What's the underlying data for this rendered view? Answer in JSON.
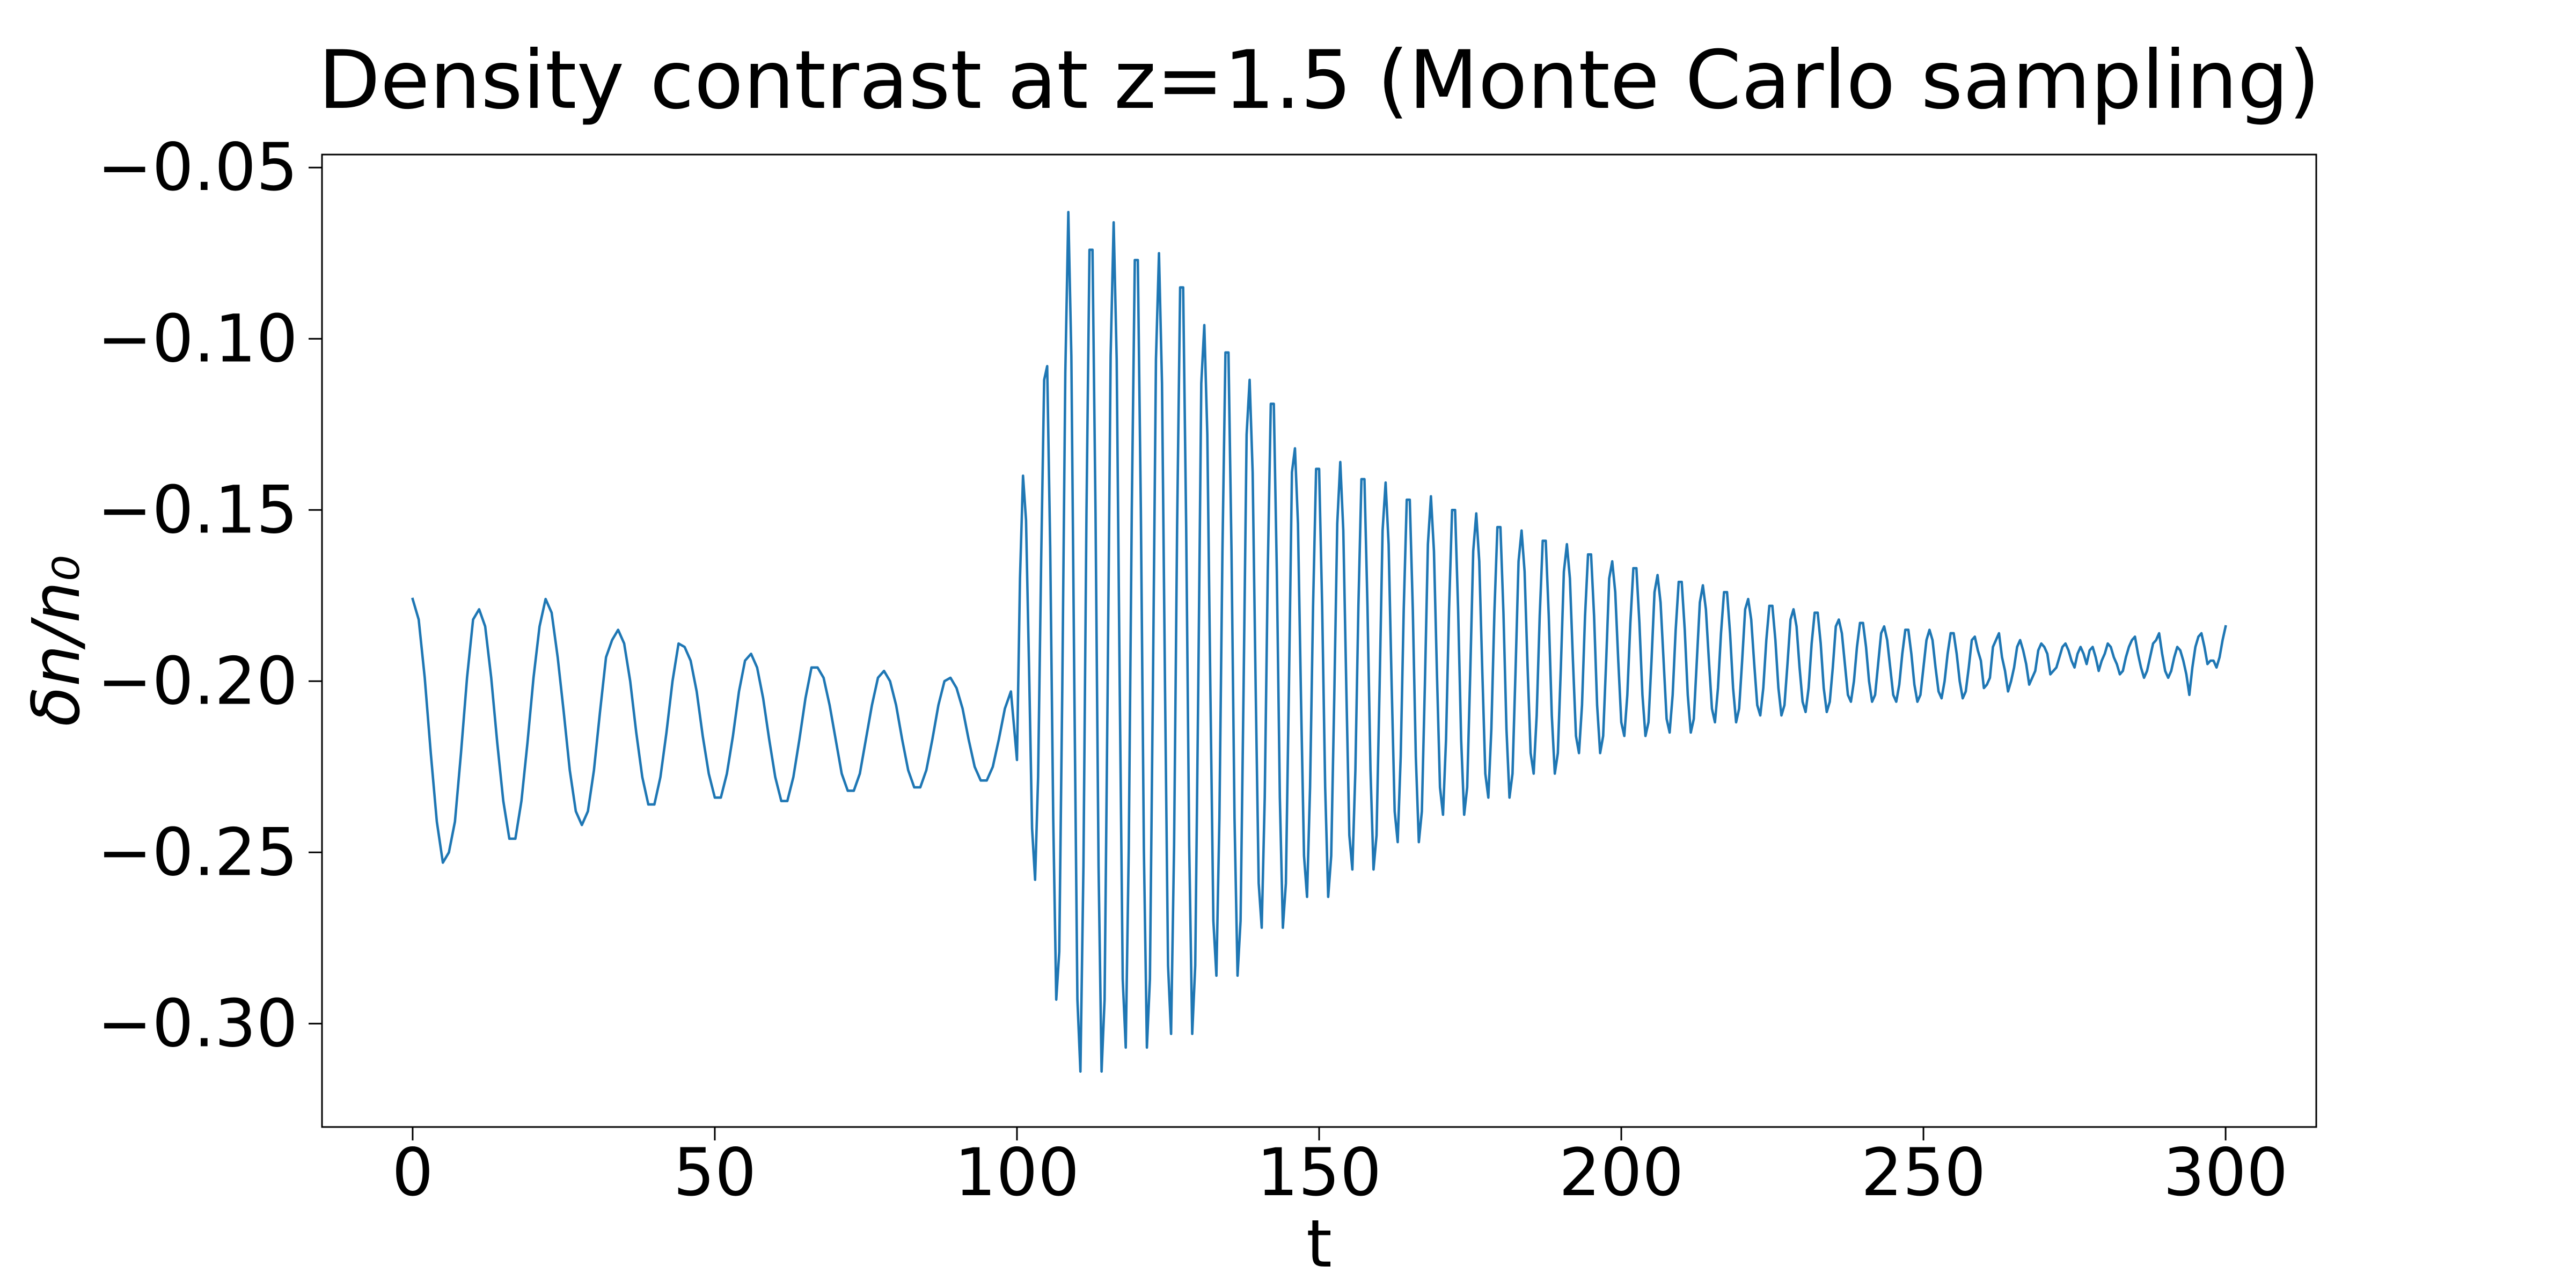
{
  "chart_data": {
    "type": "line",
    "title": "Density contrast at z=1.5 (Monte Carlo sampling)",
    "xlabel": "t",
    "ylabel": "δn/n₀",
    "color": "#1f77b4",
    "xlim": [
      -15,
      315
    ],
    "xticks": [
      0,
      50,
      100,
      150,
      200,
      250,
      300
    ],
    "ylim": [
      -0.3302,
      -0.0462
    ],
    "yticks": [
      {
        "value": -0.3,
        "label": "−0.30"
      },
      {
        "value": -0.25,
        "label": "−0.25"
      },
      {
        "value": -0.2,
        "label": "−0.20"
      },
      {
        "value": -0.15,
        "label": "−0.15"
      },
      {
        "value": -0.1,
        "label": "−0.10"
      },
      {
        "value": -0.05,
        "label": "−0.05"
      }
    ],
    "x": [
      0,
      1,
      2,
      3,
      4,
      5,
      6,
      7,
      8,
      9,
      10,
      11,
      12,
      13,
      14,
      15,
      16,
      17,
      18,
      19,
      20,
      21,
      22,
      23,
      24,
      25,
      26,
      27,
      28,
      29,
      30,
      31,
      32,
      33,
      34,
      35,
      36,
      37,
      38,
      39,
      40,
      41,
      42,
      43,
      44,
      45,
      46,
      47,
      48,
      49,
      50,
      51,
      52,
      53,
      54,
      55,
      56,
      57,
      58,
      59,
      60,
      61,
      62,
      63,
      64,
      65,
      66,
      67,
      68,
      69,
      70,
      71,
      72,
      73,
      74,
      75,
      76,
      77,
      78,
      79,
      80,
      81,
      82,
      83,
      84,
      85,
      86,
      87,
      88,
      89,
      90,
      91,
      92,
      93,
      94,
      95,
      96,
      97,
      98,
      99,
      100,
      100.5,
      101,
      101.5,
      102,
      102.5,
      103,
      103.5,
      104,
      104.5,
      105,
      105.5,
      106,
      106.5,
      107,
      107.5,
      108,
      108.5,
      109,
      109.5,
      110,
      110.5,
      111,
      111.5,
      112,
      112.5,
      113,
      113.5,
      114,
      114.5,
      115,
      115.5,
      116,
      116.5,
      117,
      117.5,
      118,
      118.5,
      119,
      119.5,
      120,
      120.5,
      121,
      121.5,
      122,
      122.5,
      123,
      123.5,
      124,
      124.5,
      125,
      125.5,
      126,
      126.5,
      127,
      127.5,
      128,
      128.5,
      129,
      129.5,
      130,
      130.5,
      131,
      131.5,
      132,
      132.5,
      133,
      133.5,
      134,
      134.5,
      135,
      135.5,
      136,
      136.5,
      137,
      137.5,
      138,
      138.5,
      139,
      139.5,
      140,
      140.5,
      141,
      141.5,
      142,
      142.5,
      143,
      143.5,
      144,
      144.5,
      145,
      145.5,
      146,
      146.5,
      147,
      147.5,
      148,
      148.5,
      149,
      149.5,
      150,
      150.5,
      151,
      151.5,
      152,
      152.5,
      153,
      153.5,
      154,
      154.5,
      155,
      155.5,
      156,
      156.5,
      157,
      157.5,
      158,
      158.5,
      159,
      159.5,
      160,
      160.5,
      161,
      161.5,
      162,
      162.5,
      163,
      163.5,
      164,
      164.5,
      165,
      165.5,
      166,
      166.5,
      167,
      167.5,
      168,
      168.5,
      169,
      169.5,
      170,
      170.5,
      171,
      171.5,
      172,
      172.5,
      173,
      173.5,
      174,
      174.5,
      175,
      175.5,
      176,
      176.5,
      177,
      177.5,
      178,
      178.5,
      179,
      179.5,
      180,
      180.5,
      181,
      181.5,
      182,
      182.5,
      183,
      183.5,
      184,
      184.5,
      185,
      185.5,
      186,
      186.5,
      187,
      187.5,
      188,
      188.5,
      189,
      189.5,
      190,
      190.5,
      191,
      191.5,
      192,
      192.5,
      193,
      193.5,
      194,
      194.5,
      195,
      195.5,
      196,
      196.5,
      197,
      197.5,
      198,
      198.5,
      199,
      199.5,
      200,
      200.5,
      201,
      201.5,
      202,
      202.5,
      203,
      203.5,
      204,
      204.5,
      205,
      205.5,
      206,
      206.5,
      207,
      207.5,
      208,
      208.5,
      209,
      209.5,
      210,
      210.5,
      211,
      211.5,
      212,
      212.5,
      213,
      213.5,
      214,
      214.5,
      215,
      215.5,
      216,
      216.5,
      217,
      217.5,
      218,
      218.5,
      219,
      219.5,
      220,
      220.5,
      221,
      221.5,
      222,
      222.5,
      223,
      223.5,
      224,
      224.5,
      225,
      225.5,
      226,
      226.5,
      227,
      227.5,
      228,
      228.5,
      229,
      229.5,
      230,
      230.5,
      231,
      231.5,
      232,
      232.5,
      233,
      233.5,
      234,
      234.5,
      235,
      235.5,
      236,
      236.5,
      237,
      237.5,
      238,
      238.5,
      239,
      239.5,
      240,
      240.5,
      241,
      241.5,
      242,
      242.5,
      243,
      243.5,
      244,
      244.5,
      245,
      245.5,
      246,
      246.5,
      247,
      247.5,
      248,
      248.5,
      249,
      249.5,
      250,
      250.5,
      251,
      251.5,
      252,
      252.5,
      253,
      253.5,
      254,
      254.5,
      255,
      255.5,
      256,
      256.5,
      257,
      257.5,
      258,
      258.5,
      259,
      259.5,
      260,
      260.5,
      261,
      261.5,
      262,
      262.5,
      263,
      263.5,
      264,
      264.5,
      265,
      265.5,
      266,
      266.5,
      267,
      267.5,
      268,
      268.5,
      269,
      269.5,
      270,
      270.5,
      271,
      271.5,
      272,
      272.5,
      273,
      273.5,
      274,
      274.5,
      275,
      275.5,
      276,
      276.5,
      277,
      277.5,
      278,
      278.5,
      279,
      279.5,
      280,
      280.5,
      281,
      281.5,
      282,
      282.5,
      283,
      283.5,
      284,
      284.5,
      285,
      285.5,
      286,
      286.5,
      287,
      287.5,
      288,
      288.5,
      289,
      289.5,
      290,
      290.5,
      291,
      291.5,
      292,
      292.5,
      293,
      293.5,
      294,
      294.5,
      295,
      295.5,
      296,
      296.5,
      297,
      297.5,
      298,
      298.5,
      299,
      299.5,
      300
    ],
    "values": [
      -0.176,
      -0.182,
      -0.199,
      -0.221,
      -0.241,
      -0.253,
      -0.25,
      -0.241,
      -0.221,
      -0.199,
      -0.182,
      -0.179,
      -0.184,
      -0.199,
      -0.218,
      -0.235,
      -0.246,
      -0.246,
      -0.235,
      -0.218,
      -0.199,
      -0.184,
      -0.176,
      -0.18,
      -0.193,
      -0.209,
      -0.226,
      -0.238,
      -0.242,
      -0.238,
      -0.226,
      -0.209,
      -0.193,
      -0.188,
      -0.185,
      -0.189,
      -0.2,
      -0.215,
      -0.228,
      -0.236,
      -0.236,
      -0.228,
      -0.215,
      -0.2,
      -0.189,
      -0.19,
      -0.194,
      -0.203,
      -0.216,
      -0.227,
      -0.234,
      -0.234,
      -0.227,
      -0.216,
      -0.203,
      -0.194,
      -0.192,
      -0.196,
      -0.205,
      -0.217,
      -0.228,
      -0.235,
      -0.235,
      -0.228,
      -0.217,
      -0.205,
      -0.196,
      -0.196,
      -0.199,
      -0.207,
      -0.217,
      -0.227,
      -0.232,
      -0.232,
      -0.227,
      -0.217,
      -0.207,
      -0.199,
      -0.197,
      -0.2,
      -0.207,
      -0.217,
      -0.226,
      -0.231,
      -0.231,
      -0.226,
      -0.217,
      -0.207,
      -0.2,
      -0.199,
      -0.202,
      -0.208,
      -0.217,
      -0.225,
      -0.229,
      -0.229,
      -0.225,
      -0.217,
      -0.208,
      -0.203,
      -0.223,
      -0.17,
      -0.14,
      -0.153,
      -0.196,
      -0.243,
      -0.258,
      -0.228,
      -0.165,
      -0.112,
      -0.108,
      -0.161,
      -0.24,
      -0.293,
      -0.279,
      -0.202,
      -0.11,
      -0.063,
      -0.105,
      -0.203,
      -0.293,
      -0.314,
      -0.254,
      -0.151,
      -0.074,
      -0.074,
      -0.151,
      -0.254,
      -0.314,
      -0.293,
      -0.203,
      -0.105,
      -0.066,
      -0.106,
      -0.201,
      -0.287,
      -0.307,
      -0.249,
      -0.15,
      -0.077,
      -0.077,
      -0.15,
      -0.249,
      -0.307,
      -0.287,
      -0.201,
      -0.106,
      -0.075,
      -0.113,
      -0.202,
      -0.283,
      -0.303,
      -0.248,
      -0.155,
      -0.085,
      -0.085,
      -0.155,
      -0.248,
      -0.303,
      -0.283,
      -0.202,
      -0.113,
      -0.096,
      -0.128,
      -0.202,
      -0.27,
      -0.286,
      -0.24,
      -0.162,
      -0.104,
      -0.104,
      -0.162,
      -0.24,
      -0.286,
      -0.27,
      -0.202,
      -0.128,
      -0.112,
      -0.139,
      -0.202,
      -0.259,
      -0.272,
      -0.234,
      -0.168,
      -0.119,
      -0.119,
      -0.168,
      -0.234,
      -0.272,
      -0.259,
      -0.202,
      -0.139,
      -0.132,
      -0.154,
      -0.205,
      -0.251,
      -0.263,
      -0.231,
      -0.178,
      -0.138,
      -0.138,
      -0.178,
      -0.231,
      -0.263,
      -0.251,
      -0.205,
      -0.154,
      -0.136,
      -0.156,
      -0.202,
      -0.245,
      -0.255,
      -0.226,
      -0.178,
      -0.141,
      -0.141,
      -0.178,
      -0.226,
      -0.255,
      -0.245,
      -0.202,
      -0.156,
      -0.142,
      -0.16,
      -0.201,
      -0.238,
      -0.247,
      -0.222,
      -0.179,
      -0.147,
      -0.147,
      -0.179,
      -0.222,
      -0.247,
      -0.238,
      -0.201,
      -0.16,
      -0.146,
      -0.162,
      -0.198,
      -0.231,
      -0.239,
      -0.217,
      -0.179,
      -0.15,
      -0.15,
      -0.179,
      -0.217,
      -0.239,
      -0.231,
      -0.198,
      -0.162,
      -0.151,
      -0.165,
      -0.197,
      -0.227,
      -0.234,
      -0.214,
      -0.18,
      -0.155,
      -0.155,
      -0.18,
      -0.214,
      -0.234,
      -0.227,
      -0.197,
      -0.165,
      -0.156,
      -0.168,
      -0.196,
      -0.221,
      -0.227,
      -0.21,
      -0.181,
      -0.159,
      -0.159,
      -0.181,
      -0.21,
      -0.227,
      -0.221,
      -0.196,
      -0.168,
      -0.16,
      -0.17,
      -0.194,
      -0.216,
      -0.221,
      -0.207,
      -0.181,
      -0.163,
      -0.163,
      -0.181,
      -0.207,
      -0.221,
      -0.216,
      -0.194,
      -0.17,
      -0.165,
      -0.174,
      -0.194,
      -0.212,
      -0.216,
      -0.204,
      -0.183,
      -0.167,
      -0.167,
      -0.183,
      -0.204,
      -0.216,
      -0.212,
      -0.194,
      -0.174,
      -0.169,
      -0.177,
      -0.194,
      -0.211,
      -0.215,
      -0.204,
      -0.185,
      -0.171,
      -0.171,
      -0.185,
      -0.204,
      -0.215,
      -0.211,
      -0.194,
      -0.177,
      -0.172,
      -0.179,
      -0.194,
      -0.208,
      -0.212,
      -0.202,
      -0.186,
      -0.174,
      -0.174,
      -0.186,
      -0.202,
      -0.212,
      -0.208,
      -0.194,
      -0.179,
      -0.176,
      -0.182,
      -0.195,
      -0.207,
      -0.21,
      -0.202,
      -0.188,
      -0.178,
      -0.178,
      -0.188,
      -0.202,
      -0.21,
      -0.207,
      -0.195,
      -0.182,
      -0.179,
      -0.184,
      -0.196,
      -0.206,
      -0.209,
      -0.202,
      -0.189,
      -0.18,
      -0.18,
      -0.189,
      -0.202,
      -0.209,
      -0.206,
      -0.196,
      -0.184,
      -0.182,
      -0.186,
      -0.195,
      -0.204,
      -0.206,
      -0.2,
      -0.19,
      -0.183,
      -0.183,
      -0.19,
      -0.2,
      -0.206,
      -0.204,
      -0.195,
      -0.186,
      -0.184,
      -0.188,
      -0.196,
      -0.204,
      -0.206,
      -0.201,
      -0.192,
      -0.185,
      -0.185,
      -0.192,
      -0.201,
      -0.206,
      -0.204,
      -0.196,
      -0.188,
      -0.185,
      -0.188,
      -0.196,
      -0.203,
      -0.205,
      -0.2,
      -0.192,
      -0.186,
      -0.186,
      -0.192,
      -0.2,
      -0.205,
      -0.203,
      -0.196,
      -0.188,
      -0.187,
      -0.191,
      -0.194,
      -0.202,
      -0.201,
      -0.199,
      -0.19,
      -0.188,
      -0.186,
      -0.193,
      -0.197,
      -0.203,
      -0.2,
      -0.196,
      -0.19,
      -0.188,
      -0.191,
      -0.195,
      -0.201,
      -0.199,
      -0.197,
      -0.191,
      -0.189,
      -0.19,
      -0.192,
      -0.198,
      -0.197,
      -0.196,
      -0.193,
      -0.19,
      -0.189,
      -0.191,
      -0.194,
      -0.196,
      -0.192,
      -0.19,
      -0.192,
      -0.195,
      -0.191,
      -0.19,
      -0.193,
      -0.197,
      -0.194,
      -0.192,
      -0.189,
      -0.19,
      -0.193,
      -0.195,
      -0.198,
      -0.197,
      -0.193,
      -0.19,
      -0.188,
      -0.187,
      -0.192,
      -0.196,
      -0.199,
      -0.197,
      -0.193,
      -0.189,
      -0.188,
      -0.186,
      -0.192,
      -0.197,
      -0.199,
      -0.197,
      -0.193,
      -0.19,
      -0.191,
      -0.194,
      -0.198,
      -0.204,
      -0.196,
      -0.19,
      -0.187,
      -0.186,
      -0.19,
      -0.195,
      -0.194,
      -0.194,
      -0.196,
      -0.193,
      -0.188,
      -0.184
    ]
  }
}
